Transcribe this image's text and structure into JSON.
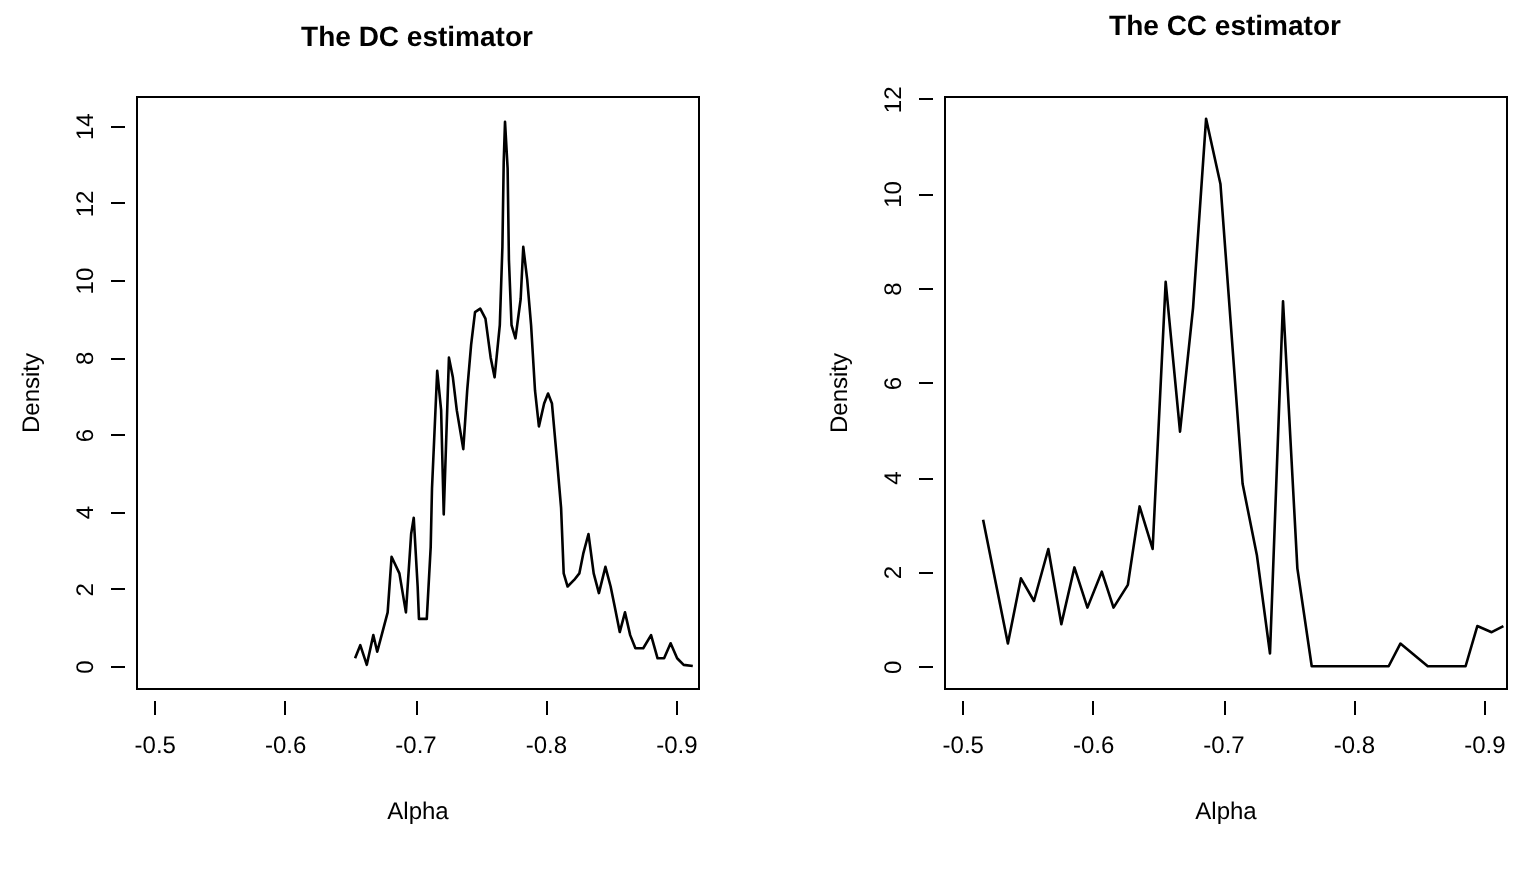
{
  "chart_data": [
    {
      "type": "line",
      "title": "The DC estimator",
      "xlabel": "Alpha",
      "ylabel": "Density",
      "color": "#000000",
      "xlim": [
        -0.486,
        -0.917
      ],
      "ylim": [
        -0.57,
        14.77
      ],
      "xticks": [
        -0.5,
        -0.6,
        -0.7,
        -0.8,
        -0.9
      ],
      "yticks": [
        0,
        2,
        4,
        6,
        8,
        10,
        12,
        14
      ],
      "x": [
        -0.654,
        -0.658,
        -0.663,
        -0.668,
        -0.671,
        -0.675,
        -0.679,
        -0.682,
        -0.688,
        -0.693,
        -0.697,
        -0.699,
        -0.702,
        -0.703,
        -0.709,
        -0.712,
        -0.713,
        -0.717,
        -0.72,
        -0.722,
        -0.726,
        -0.729,
        -0.732,
        -0.737,
        -0.74,
        -0.743,
        -0.746,
        -0.75,
        -0.754,
        -0.758,
        -0.761,
        -0.765,
        -0.767,
        -0.768,
        -0.769,
        -0.771,
        -0.772,
        -0.774,
        -0.777,
        -0.781,
        -0.783,
        -0.786,
        -0.789,
        -0.792,
        -0.795,
        -0.799,
        -0.802,
        -0.805,
        -0.809,
        -0.812,
        -0.814,
        -0.817,
        -0.822,
        -0.826,
        -0.829,
        -0.833,
        -0.837,
        -0.841,
        -0.846,
        -0.85,
        -0.853,
        -0.857,
        -0.861,
        -0.865,
        -0.869,
        -0.875,
        -0.881,
        -0.886,
        -0.891,
        -0.896,
        -0.901,
        -0.906,
        -0.913
      ],
      "values": [
        0.2,
        0.54,
        0.03,
        0.8,
        0.37,
        0.88,
        1.39,
        2.83,
        2.4,
        1.39,
        3.42,
        3.84,
        2.06,
        1.22,
        1.22,
        3.08,
        4.6,
        7.65,
        6.63,
        3.93,
        7.99,
        7.48,
        6.63,
        5.62,
        7.14,
        8.32,
        9.17,
        9.26,
        9.0,
        7.99,
        7.48,
        8.83,
        10.86,
        13.06,
        14.1,
        12.89,
        10.52,
        8.83,
        8.49,
        9.51,
        10.86,
        10.02,
        8.83,
        7.14,
        6.21,
        6.8,
        7.06,
        6.8,
        5.28,
        4.1,
        2.4,
        2.06,
        2.23,
        2.4,
        2.91,
        3.42,
        2.4,
        1.89,
        2.57,
        2.06,
        1.56,
        0.88,
        1.39,
        0.8,
        0.46,
        0.46,
        0.8,
        0.2,
        0.2,
        0.59,
        0.2,
        0.03,
        0.0
      ]
    },
    {
      "type": "line",
      "title": "The CC estimator",
      "xlabel": "Alpha",
      "ylabel": "Density",
      "color": "#000000",
      "xlim": [
        -0.486,
        -0.917
      ],
      "ylim": [
        -0.46,
        12.06
      ],
      "xticks": [
        -0.5,
        -0.6,
        -0.7,
        -0.8,
        -0.9
      ],
      "yticks": [
        0,
        2,
        4,
        6,
        8,
        10,
        12
      ],
      "x": [
        -0.516,
        -0.535,
        -0.545,
        -0.555,
        -0.566,
        -0.576,
        -0.586,
        -0.596,
        -0.607,
        -0.616,
        -0.627,
        -0.636,
        -0.646,
        -0.656,
        -0.667,
        -0.677,
        -0.687,
        -0.698,
        -0.715,
        -0.726,
        -0.736,
        -0.746,
        -0.757,
        -0.768,
        -0.827,
        -0.836,
        -0.857,
        -0.886,
        -0.895,
        -0.906,
        -0.915
      ],
      "values": [
        3.1,
        0.48,
        1.86,
        1.38,
        2.48,
        0.89,
        2.09,
        1.24,
        2.0,
        1.24,
        1.72,
        3.38,
        2.48,
        8.13,
        4.96,
        7.58,
        11.58,
        10.2,
        3.86,
        2.34,
        0.27,
        7.72,
        2.07,
        0,
        0,
        0.48,
        0,
        0,
        0.85,
        0.72,
        0.85
      ]
    }
  ]
}
